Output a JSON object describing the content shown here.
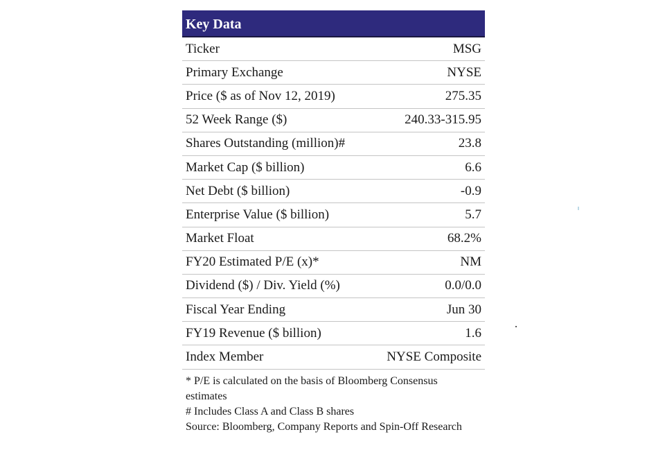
{
  "title": "Key Data",
  "rows": [
    {
      "label": "Ticker",
      "value": "MSG"
    },
    {
      "label": "Primary Exchange",
      "value": "NYSE"
    },
    {
      "label": "Price ($ as of Nov 12, 2019)",
      "value": "275.35"
    },
    {
      "label": "52 Week Range ($)",
      "value": "240.33-315.95"
    },
    {
      "label": "Shares Outstanding (million)#",
      "value": "23.8"
    },
    {
      "label": "Market Cap ($ billion)",
      "value": "6.6"
    },
    {
      "label": "Net Debt ($ billion)",
      "value": "-0.9"
    },
    {
      "label": "Enterprise Value ($ billion)",
      "value": "5.7"
    },
    {
      "label": "Market Float",
      "value": "68.2%"
    },
    {
      "label": "FY20 Estimated P/E (x)*",
      "value": "NM"
    },
    {
      "label": "Dividend ($) / Div. Yield (%)",
      "value": "0.0/0.0"
    },
    {
      "label": "Fiscal Year Ending",
      "value": "Jun 30"
    },
    {
      "label": "FY19 Revenue ($ billion)",
      "value": "1.6"
    },
    {
      "label": "Index Member",
      "value": "NYSE Composite"
    }
  ],
  "notes": {
    "pe_note": "* P/E is calculated on the basis of Bloomberg Consensus estimates",
    "shares_note": "# Includes Class A and Class B shares",
    "source_note": "Source: Bloomberg, Company Reports and Spin-Off Research"
  },
  "colors": {
    "header_bg": "#2e2a7d",
    "header_text": "#ffffff",
    "row_divider": "#c4c4c4"
  }
}
